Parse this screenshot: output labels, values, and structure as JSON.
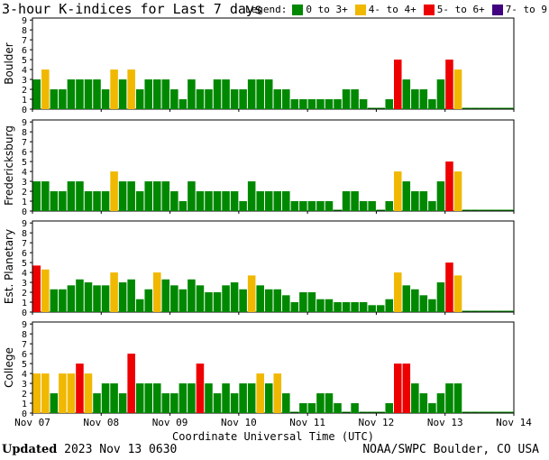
{
  "title": "3-hour K-indices for Last 7 days",
  "legend": {
    "label": "Legend:",
    "items": [
      {
        "label": "0 to 3+",
        "color": "#008800"
      },
      {
        "label": "4- to 4+",
        "color": "#f0b800"
      },
      {
        "label": "5- to 6+",
        "color": "#ee0000"
      },
      {
        "label": "7- to 9",
        "color": "#400080"
      }
    ]
  },
  "footer": {
    "updated_label": "Updated",
    "updated_value": " 2023 Nov 13 0630",
    "credit": "NOAA/SWPC Boulder, CO USA"
  },
  "chart_data": [
    {
      "type": "bar",
      "ylabel": "Boulder",
      "ylim": [
        0,
        9
      ],
      "yticks": [
        "0",
        "1",
        "2",
        "3",
        "4",
        "5",
        "6",
        "7",
        "8",
        "9"
      ],
      "xlabel": "Coordinate Universal Time (UTC)",
      "xticks": [
        "Nov 07",
        "Nov 08",
        "Nov 09",
        "Nov 10",
        "Nov 11",
        "Nov 12",
        "Nov 13",
        "Nov 14"
      ],
      "values": [
        3,
        4,
        2,
        2,
        3,
        3,
        3,
        3,
        2,
        4,
        3,
        4,
        2,
        3,
        3,
        3,
        2,
        1,
        3,
        2,
        2,
        3,
        3,
        2,
        2,
        3,
        3,
        3,
        2,
        2,
        1,
        1,
        1,
        1,
        1,
        1,
        2,
        2,
        1,
        0,
        0,
        1,
        5,
        3,
        2,
        2,
        1,
        3,
        5,
        4,
        0,
        0,
        0,
        0,
        0,
        0
      ]
    },
    {
      "type": "bar",
      "ylabel": "Fredericksburg",
      "ylim": [
        0,
        9
      ],
      "yticks": [
        "0",
        "1",
        "2",
        "3",
        "4",
        "5",
        "6",
        "7",
        "8",
        "9"
      ],
      "values": [
        3,
        3,
        2,
        2,
        3,
        3,
        2,
        2,
        2,
        4,
        3,
        3,
        2,
        3,
        3,
        3,
        2,
        1,
        3,
        2,
        2,
        2,
        2,
        2,
        1,
        3,
        2,
        2,
        2,
        2,
        1,
        1,
        1,
        1,
        1,
        0,
        2,
        2,
        1,
        1,
        0,
        1,
        4,
        3,
        2,
        2,
        1,
        3,
        5,
        4,
        0,
        0,
        0,
        0,
        0,
        0
      ]
    },
    {
      "type": "bar",
      "ylabel": "Est. Planetary",
      "ylim": [
        0,
        9
      ],
      "yticks": [
        "0",
        "1",
        "2",
        "3",
        "4",
        "5",
        "6",
        "7",
        "8",
        "9"
      ],
      "values": [
        4.7,
        4.3,
        2.3,
        2.3,
        2.7,
        3.3,
        3,
        2.7,
        2.7,
        4,
        3,
        3.3,
        1.3,
        2.3,
        4,
        3.3,
        2.7,
        2.3,
        3.3,
        2.7,
        2,
        2,
        2.7,
        3,
        2.3,
        3.7,
        2.7,
        2.3,
        2.3,
        1.7,
        1,
        2,
        2,
        1.3,
        1.3,
        1,
        1,
        1,
        1,
        0.7,
        0.7,
        1.3,
        4,
        2.7,
        2.3,
        1.7,
        1.3,
        3,
        5,
        3.7,
        0,
        0,
        0,
        0,
        0,
        0
      ]
    },
    {
      "type": "bar",
      "ylabel": "College",
      "ylim": [
        0,
        9
      ],
      "yticks": [
        "0",
        "1",
        "2",
        "3",
        "4",
        "5",
        "6",
        "7",
        "8",
        "9"
      ],
      "values": [
        4,
        4,
        2,
        4,
        4,
        5,
        4,
        2,
        3,
        3,
        2,
        6,
        3,
        3,
        3,
        2,
        2,
        3,
        3,
        5,
        3,
        2,
        3,
        2,
        3,
        3,
        4,
        3,
        4,
        2,
        0,
        1,
        1,
        2,
        2,
        1,
        0,
        1,
        0,
        0,
        0,
        1,
        5,
        5,
        3,
        2,
        1,
        2,
        3,
        3,
        0,
        0,
        0,
        0,
        0,
        0
      ]
    }
  ]
}
